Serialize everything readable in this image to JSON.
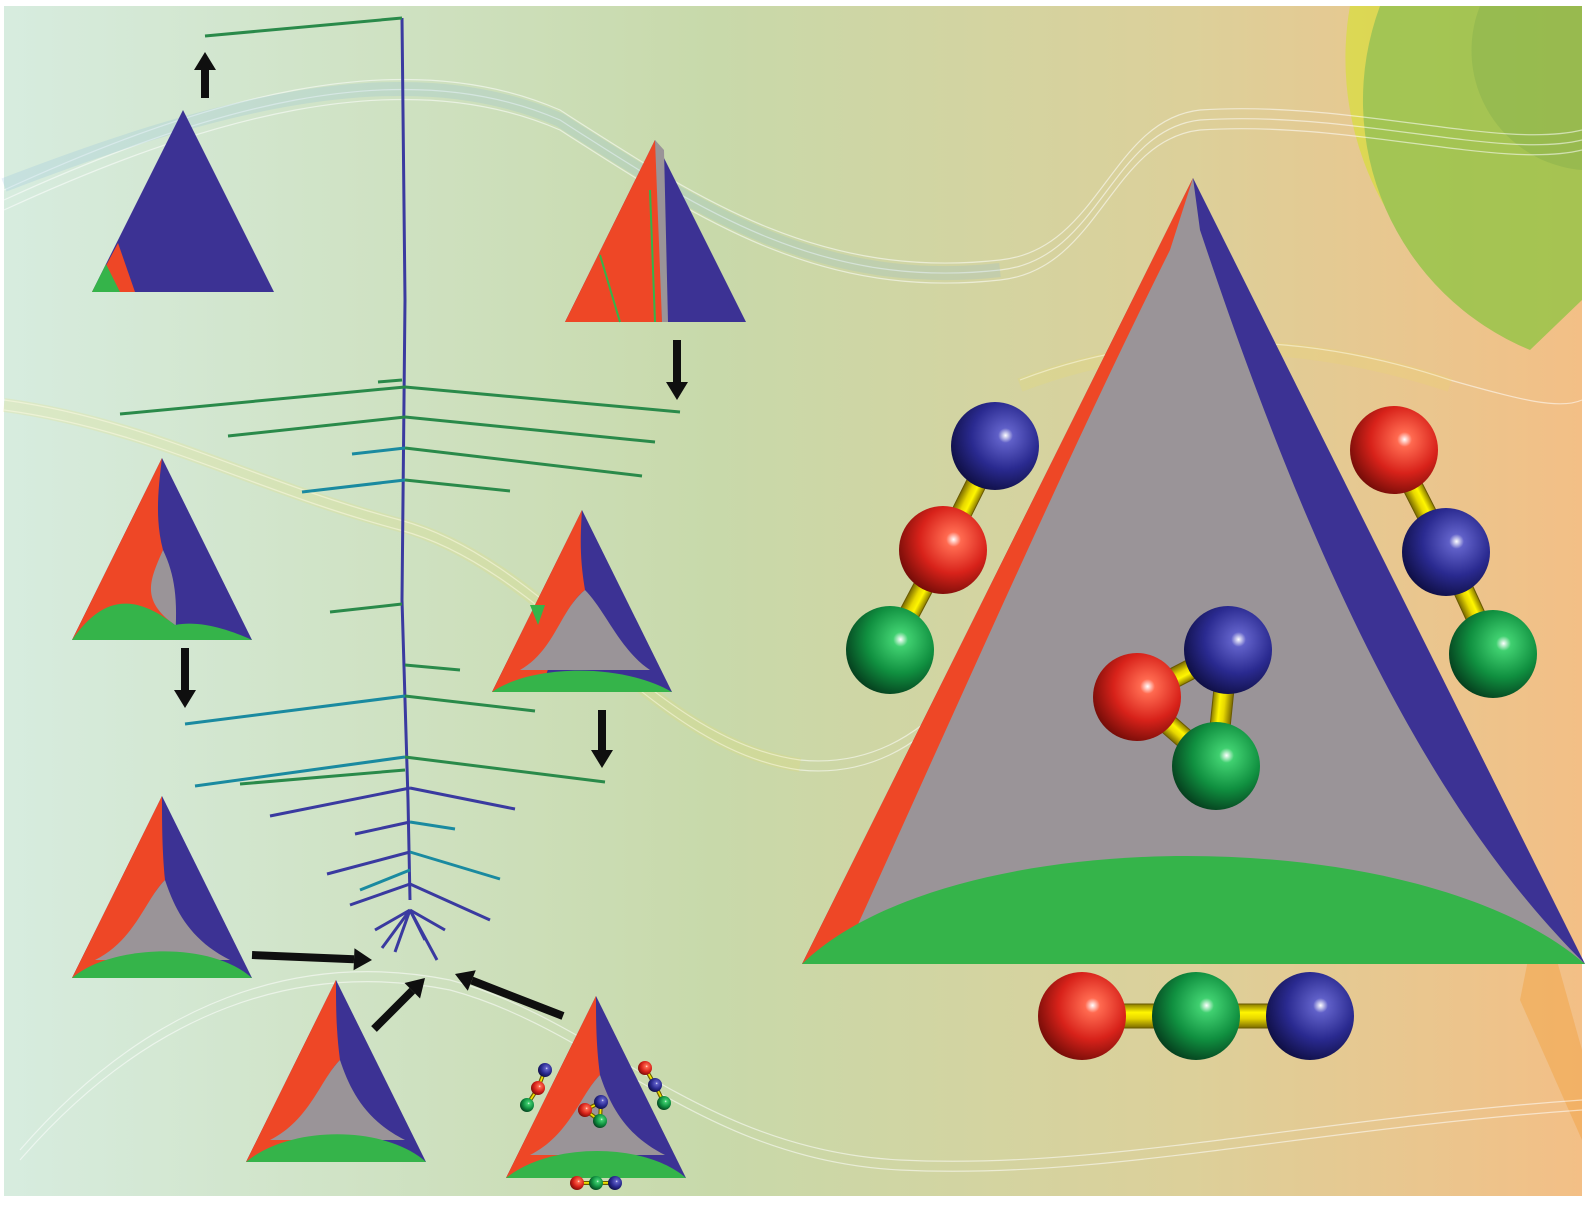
{
  "colors": {
    "red": "#ee4726",
    "blue": "#3c3294",
    "green": "#35b44a",
    "gray": "#9a9498",
    "bond": "#e8d800",
    "arrow": "#0f0f0f",
    "tree_green": "#2a8a4a",
    "tree_teal": "#1a8aa0",
    "tree_blue": "#3a3aa0",
    "bg_left": "#d6ebde",
    "bg_mid": "#c7d8a8",
    "bg_right": "#f2c48c"
  },
  "diagram": {
    "kind": "ternary phase diagrams connected by an evolution tree",
    "small_triangles": [
      {
        "id": "t1",
        "regions": [
          "green",
          "red",
          "blue"
        ]
      },
      {
        "id": "t2",
        "regions": [
          "red",
          "gray",
          "blue"
        ]
      },
      {
        "id": "t3",
        "regions": [
          "red",
          "gray",
          "blue",
          "green"
        ]
      },
      {
        "id": "t4",
        "regions": [
          "red",
          "gray",
          "blue",
          "green"
        ]
      },
      {
        "id": "t5",
        "regions": [
          "red",
          "gray",
          "blue",
          "green"
        ]
      },
      {
        "id": "t6",
        "regions": [
          "red",
          "gray",
          "blue",
          "green"
        ]
      },
      {
        "id": "t7",
        "regions": [
          "red",
          "gray",
          "blue",
          "green"
        ]
      }
    ],
    "large_triangle": {
      "regions": [
        "red",
        "gray",
        "blue",
        "green"
      ]
    },
    "molecules": [
      {
        "id": "top-left",
        "atoms": [
          "blue",
          "red",
          "green"
        ],
        "shape": "chain"
      },
      {
        "id": "top-right",
        "atoms": [
          "red",
          "blue",
          "green"
        ],
        "shape": "chain"
      },
      {
        "id": "center",
        "atoms": [
          "blue",
          "red",
          "green"
        ],
        "shape": "ring"
      },
      {
        "id": "bottom",
        "atoms": [
          "red",
          "green",
          "blue"
        ],
        "shape": "chain"
      }
    ]
  }
}
